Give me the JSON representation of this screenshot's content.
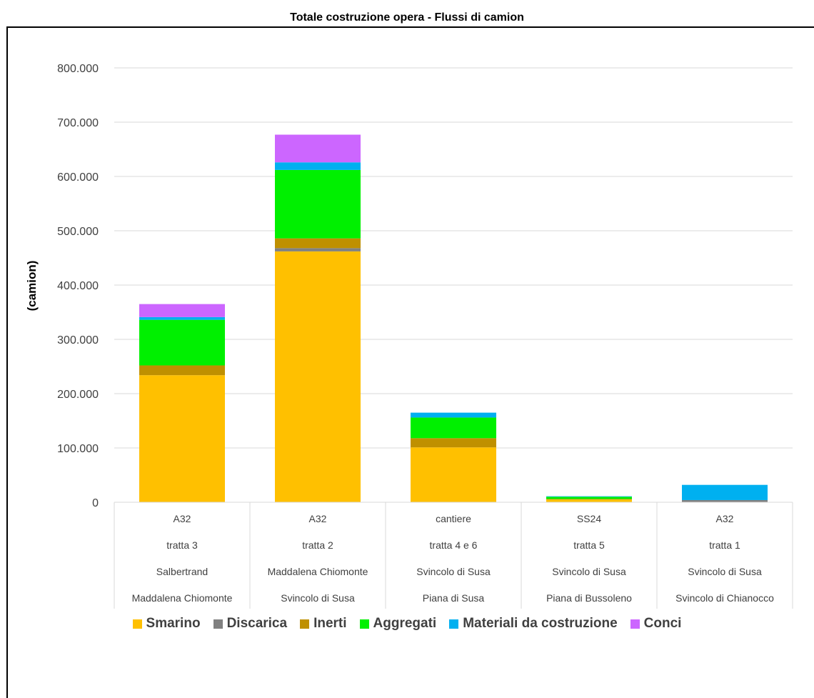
{
  "chart_data": {
    "type": "bar",
    "stacked": true,
    "title": "Totale costruzione opera - Flussi di camion",
    "ylabel": "(camion)",
    "xlabel": "",
    "ylim": [
      0,
      800000
    ],
    "yticks": [
      "0",
      "100.000",
      "200.000",
      "300.000",
      "400.000",
      "500.000",
      "600.000",
      "700.000",
      "800.000"
    ],
    "ytick_values": [
      0,
      100000,
      200000,
      300000,
      400000,
      500000,
      600000,
      700000,
      800000
    ],
    "grid": true,
    "legend_position": "bottom",
    "categories": [
      [
        "A32",
        "tratta 3",
        "Salbertrand",
        "Maddalena Chiomonte"
      ],
      [
        "A32",
        "tratta 2",
        "Maddalena Chiomonte",
        "Svincolo di Susa"
      ],
      [
        "cantiere",
        "tratta 4 e 6",
        "Svincolo di Susa",
        "Piana di Susa"
      ],
      [
        "SS24",
        "tratta 5",
        "Svincolo di Susa",
        "Piana di Bussoleno"
      ],
      [
        "A32",
        "tratta 1",
        "Svincolo di Susa",
        "Svincolo di Chianocco"
      ]
    ],
    "series": [
      {
        "name": "Smarino",
        "color": "#FFC000",
        "values": [
          234000,
          462000,
          101000,
          5000,
          0
        ]
      },
      {
        "name": "Discarica",
        "color": "#808080",
        "values": [
          0,
          6000,
          0,
          0,
          4000
        ]
      },
      {
        "name": "Inerti",
        "color": "#BF9000",
        "values": [
          18000,
          18000,
          17000,
          1000,
          0
        ]
      },
      {
        "name": "Aggregati",
        "color": "#00F000",
        "values": [
          84000,
          126000,
          38000,
          4000,
          0
        ]
      },
      {
        "name": "Materiali da costruzione",
        "color": "#00B0F0",
        "values": [
          5000,
          14000,
          9000,
          1000,
          28000
        ]
      },
      {
        "name": "Conci",
        "color": "#CC66FF",
        "values": [
          24000,
          51000,
          0,
          0,
          0
        ]
      }
    ]
  }
}
